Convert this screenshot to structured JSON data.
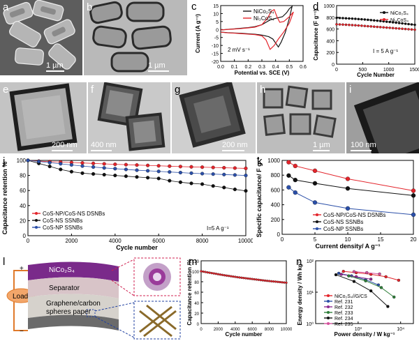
{
  "labels": {
    "a": "a",
    "b": "b",
    "c": "c",
    "d": "d",
    "e": "e",
    "f": "f",
    "g": "g",
    "h": "h",
    "i": "i",
    "j": "j",
    "k": "k",
    "l": "l",
    "m": "m",
    "n": "n"
  },
  "scalebars": {
    "a": "1 µm",
    "b": "1 µm",
    "e": "200 nm",
    "f": "400 nm",
    "g": "200 nm",
    "h": "1 µm",
    "i": "100 nm"
  },
  "schematic": {
    "nicos": "NiCo₂S₄",
    "separator": "Separator",
    "graphene_line1": "Graphene/carbon",
    "graphene_line2": "spheres paper",
    "load": "Load",
    "plus": "+",
    "minus": "−"
  },
  "colors": {
    "black": "#111111",
    "red": "#e3242b",
    "blue": "#2b4fa8",
    "purple": "#8e2a90",
    "green": "#2f7f3a",
    "pink": "#d4509c"
  },
  "chart_data": [
    {
      "id": "c",
      "type": "line",
      "xlabel": "Potential vs. SCE (V)",
      "ylabel": "Current (A g⁻¹)",
      "xlim": [
        0.0,
        0.6
      ],
      "ylim": [
        -20,
        15
      ],
      "xticks": [
        "0.0",
        "0.1",
        "0.2",
        "0.3",
        "0.4",
        "0.5",
        "0.6"
      ],
      "yticks": [
        "-20",
        "-15",
        "-10",
        "-5",
        "0",
        "5",
        "10",
        "15"
      ],
      "annotation": "2 mV s⁻¹",
      "series": [
        {
          "name": "NiCo₂S₄",
          "color": "#111111",
          "x": [
            0.0,
            0.05,
            0.1,
            0.15,
            0.2,
            0.25,
            0.3,
            0.33,
            0.36,
            0.4,
            0.45,
            0.48,
            0.5,
            0.52,
            0.5,
            0.47,
            0.44,
            0.42,
            0.38,
            0.35,
            0.3,
            0.25,
            0.2,
            0.15,
            0.1,
            0.05,
            0.0
          ],
          "y": [
            -0.3,
            0.1,
            0.4,
            0.8,
            1.2,
            1.8,
            3.0,
            4.5,
            6.0,
            7.0,
            8.0,
            10.5,
            13.0,
            14.5,
            7.0,
            -2.0,
            -8.0,
            -11.0,
            -6.0,
            -4.5,
            -3.5,
            -3.0,
            -2.7,
            -2.4,
            -2.2,
            -2.0,
            -1.6
          ]
        },
        {
          "name": "Ni₃CoS₄",
          "color": "#e3242b",
          "x": [
            0.0,
            0.05,
            0.1,
            0.15,
            0.2,
            0.25,
            0.3,
            0.34,
            0.37,
            0.39,
            0.41,
            0.43,
            0.46,
            0.5,
            0.53,
            0.5,
            0.46,
            0.42,
            0.39,
            0.36,
            0.33,
            0.3,
            0.25,
            0.2,
            0.15,
            0.1,
            0.05,
            0.0
          ],
          "y": [
            -0.3,
            0.0,
            0.3,
            0.6,
            1.0,
            1.5,
            3.0,
            7.0,
            11.5,
            12.5,
            8.0,
            4.5,
            5.0,
            8.0,
            11.0,
            4.0,
            -1.5,
            -6.0,
            -10.0,
            -12.5,
            -6.5,
            -4.0,
            -3.2,
            -2.9,
            -2.6,
            -2.3,
            -2.1,
            -1.7
          ]
        }
      ]
    },
    {
      "id": "d",
      "type": "line",
      "xlabel": "Cycle Number",
      "ylabel": "Capacitance (F g⁻¹)",
      "xlim": [
        0,
        1500
      ],
      "ylim": [
        0,
        1000
      ],
      "xticks": [
        "0",
        "500",
        "1000",
        "1500"
      ],
      "yticks": [
        "0",
        "200",
        "400",
        "600",
        "800",
        "1000"
      ],
      "annotation": "I = 5 A g⁻¹",
      "series": [
        {
          "name": "NiCo₂S₄",
          "color": "#111111",
          "x": [
            0,
            60,
            120,
            180,
            240,
            300,
            360,
            420,
            480,
            540,
            600,
            660,
            720,
            780,
            840,
            900,
            960,
            1020,
            1080,
            1140,
            1200,
            1260,
            1320,
            1380,
            1440,
            1500
          ],
          "y": [
            790,
            788,
            786,
            783,
            780,
            777,
            774,
            770,
            766,
            762,
            757,
            752,
            747,
            742,
            737,
            731,
            725,
            720,
            714,
            708,
            702,
            696,
            690,
            684,
            678,
            672
          ]
        },
        {
          "name": "Ni₃CoS₄",
          "color": "#e3242b",
          "x": [
            0,
            60,
            120,
            180,
            240,
            300,
            360,
            420,
            480,
            540,
            600,
            660,
            720,
            780,
            840,
            900,
            960,
            1020,
            1080,
            1140,
            1200,
            1260,
            1320,
            1380,
            1440,
            1500
          ],
          "y": [
            680,
            678,
            676,
            673,
            670,
            667,
            664,
            660,
            656,
            652,
            648,
            644,
            640,
            636,
            632,
            628,
            624,
            620,
            616,
            612,
            608,
            604,
            600,
            596,
            592,
            588
          ]
        }
      ]
    },
    {
      "id": "j",
      "type": "line",
      "xlabel": "Cycle number",
      "ylabel": "Capacitance retention %",
      "xlim": [
        0,
        10000
      ],
      "ylim": [
        0,
        100
      ],
      "xticks": [
        "0",
        "2000",
        "4000",
        "6000",
        "8000",
        "10000"
      ],
      "yticks": [
        "0",
        "20",
        "40",
        "60",
        "80",
        "100"
      ],
      "annotation": "I=5 A g⁻¹",
      "series": [
        {
          "name": "CoS-NP/CoS-NS DSNBs",
          "color": "#e3242b",
          "x": [
            0,
            500,
            1000,
            1500,
            2000,
            2500,
            3000,
            3500,
            4000,
            4500,
            5000,
            5500,
            6000,
            6500,
            7000,
            7500,
            8000,
            8500,
            9000,
            9500,
            10000
          ],
          "y": [
            100,
            99.0,
            98.4,
            97.8,
            97.2,
            96.6,
            96.0,
            95.4,
            94.8,
            94.3,
            93.8,
            93.3,
            92.8,
            92.3,
            91.8,
            91.4,
            91.0,
            90.6,
            90.2,
            89.8,
            89.4
          ]
        },
        {
          "name": "CoS-NS SSNBs",
          "color": "#111111",
          "x": [
            0,
            500,
            1000,
            1500,
            2000,
            2500,
            3000,
            3500,
            4000,
            4500,
            5000,
            5500,
            6000,
            6500,
            7000,
            7500,
            8000,
            8500,
            9000,
            9500,
            10000
          ],
          "y": [
            100,
            96.0,
            92.0,
            88.0,
            85.0,
            83.0,
            82.0,
            81.0,
            80.0,
            79.0,
            78.0,
            77.0,
            76.0,
            73.0,
            71.0,
            69.5,
            68.5,
            66.0,
            64.0,
            61.5,
            59.5
          ]
        },
        {
          "name": "CoS-NP SSNBs",
          "color": "#2b4fa8",
          "x": [
            0,
            500,
            1000,
            1500,
            2000,
            2500,
            3000,
            3500,
            4000,
            4500,
            5000,
            5500,
            6000,
            6500,
            7000,
            7500,
            8000,
            8500,
            9000,
            9500,
            10000
          ],
          "y": [
            100,
            98.5,
            97.0,
            95.5,
            94.0,
            92.5,
            91.2,
            90.0,
            89.0,
            88.0,
            87.0,
            86.2,
            85.4,
            84.6,
            83.8,
            83.0,
            82.4,
            81.8,
            81.2,
            80.6,
            80.0
          ]
        }
      ]
    },
    {
      "id": "k",
      "type": "line",
      "xlabel": "Current density/ A g⁻¹",
      "ylabel": "Specific capacitance/ F g⁻¹",
      "xlim": [
        0,
        20
      ],
      "ylim": [
        0,
        1000
      ],
      "xticks": [
        "0",
        "5",
        "10",
        "15",
        "20"
      ],
      "yticks": [
        "0",
        "200",
        "400",
        "600",
        "800",
        "1000"
      ],
      "series": [
        {
          "name": "CoS-NP/CoS-NS DSNBs",
          "color": "#e3242b",
          "x": [
            1,
            2,
            5,
            10,
            20
          ],
          "y": [
            975,
            925,
            860,
            750,
            590
          ]
        },
        {
          "name": "CoS-NS SSNBs",
          "color": "#111111",
          "x": [
            1,
            2,
            5,
            10,
            20
          ],
          "y": [
            795,
            735,
            690,
            620,
            525
          ]
        },
        {
          "name": "CoS-NP SSNBs",
          "color": "#2b4fa8",
          "x": [
            1,
            2,
            5,
            10,
            20
          ],
          "y": [
            635,
            565,
            430,
            350,
            265
          ]
        }
      ]
    },
    {
      "id": "m",
      "type": "line",
      "xlabel": "Cycle number",
      "ylabel": "Capacitance retention /%",
      "xlim": [
        0,
        10000
      ],
      "ylim": [
        0,
        120
      ],
      "xticks": [
        "0",
        "2000",
        "4000",
        "6000",
        "8000",
        "10000"
      ],
      "yticks": [
        "0",
        "20",
        "40",
        "60",
        "80",
        "100",
        "120"
      ],
      "series": [
        {
          "name": "",
          "color": "#e3242b",
          "x": [
            0,
            250,
            500,
            750,
            1000,
            1250,
            1500,
            1750,
            2000,
            2250,
            2500,
            2750,
            3000,
            3250,
            3500,
            3750,
            4000,
            4250,
            4500,
            4750,
            5000,
            5250,
            5500,
            5750,
            6000,
            6250,
            6500,
            6750,
            7000,
            7250,
            7500,
            7750,
            8000,
            8250,
            8500,
            8750,
            9000,
            9250,
            9500,
            9750,
            10000
          ],
          "y": [
            100,
            99.3,
            98.6,
            97.9,
            97.2,
            96.5,
            95.8,
            95.1,
            94.4,
            93.7,
            93.0,
            92.3,
            91.7,
            91.1,
            90.5,
            89.9,
            89.3,
            88.7,
            88.1,
            87.6,
            87.1,
            86.6,
            86.1,
            85.6,
            85.1,
            84.6,
            84.1,
            83.6,
            83.1,
            82.6,
            82.1,
            81.7,
            81.3,
            80.9,
            80.5,
            80.1,
            79.7,
            79.3,
            78.9,
            78.5,
            78.1
          ]
        }
      ]
    },
    {
      "id": "n",
      "type": "scatter",
      "xlabel": "Power density / W kg⁻¹",
      "ylabel": "Energy density / Wh kg⁻¹",
      "xlog": true,
      "ylog": true,
      "xlim": [
        100,
        20000
      ],
      "ylim": [
        1,
        100
      ],
      "xticks": [
        "10³",
        "10⁴"
      ],
      "yticks": [
        "10⁰",
        "10¹",
        "10²"
      ],
      "series": [
        {
          "name": "NiCo₂S₄//G/CS",
          "color": "#e3242b",
          "x": [
            450,
            900,
            2000,
            4500,
            9000
          ],
          "y": [
            46,
            42,
            37,
            31,
            24
          ]
        },
        {
          "name": "Ref. 231",
          "color": "#2b4fa8",
          "x": [
            350,
            700,
            1500,
            3000
          ],
          "y": [
            40,
            33,
            25,
            17
          ]
        },
        {
          "name": "Ref. 232",
          "color": "#8e2a90",
          "x": [
            400,
            900,
            2000
          ],
          "y": [
            37,
            31,
            26
          ]
        },
        {
          "name": "Ref. 233",
          "color": "#2f7f3a",
          "x": [
            600,
            1500,
            3500,
            7000
          ],
          "y": [
            33,
            23,
            14,
            7
          ]
        },
        {
          "name": "Ref. 234",
          "color": "#111111",
          "x": [
            300,
            800,
            2000,
            5000
          ],
          "y": [
            36,
            22,
            11,
            3.5
          ]
        },
        {
          "name": "Ref. 235",
          "color": "#d4509c",
          "x": [
            800,
            1600,
            3200
          ],
          "y": [
            45,
            42,
            38
          ]
        }
      ]
    }
  ]
}
